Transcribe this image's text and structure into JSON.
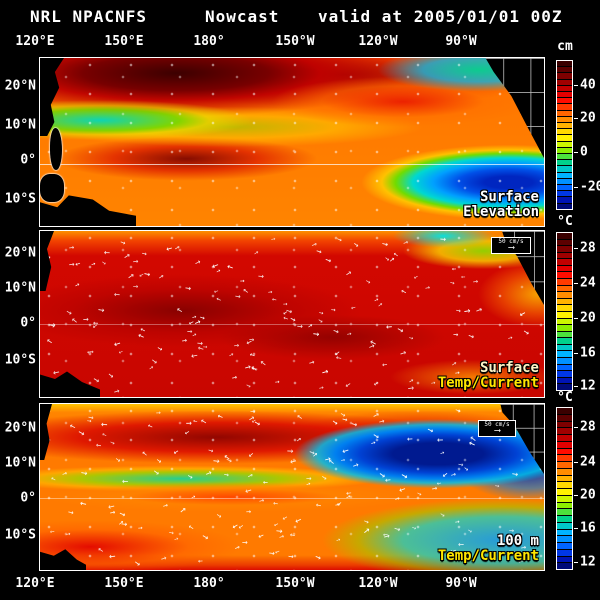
{
  "header": {
    "agency": "NRL NPACNFS",
    "product": "Nowcast",
    "valid": "valid at 2005/01/01 00Z"
  },
  "axes": {
    "lon_labels": [
      "120°E",
      "150°E",
      "180°",
      "150°W",
      "120°W",
      "90°W"
    ],
    "lat_labels": [
      "20°N",
      "10°N",
      "0°",
      "10°S"
    ]
  },
  "palette": [
    "#3a0000",
    "#5c0000",
    "#7e0000",
    "#a00000",
    "#c20000",
    "#e40000",
    "#ff0c00",
    "#ff3a00",
    "#ff6600",
    "#ff8c00",
    "#ffb200",
    "#ffd800",
    "#fff200",
    "#ccf600",
    "#8cee00",
    "#4ce23c",
    "#00d28c",
    "#00c8c8",
    "#00b4ff",
    "#0091ff",
    "#0064ff",
    "#0037e6",
    "#0014b4",
    "#000a78"
  ],
  "colorbars": [
    {
      "unit": "cm",
      "ticks": [
        "40",
        "20",
        "0",
        "-20"
      ],
      "tick_pos": [
        0.167,
        0.387,
        0.613,
        0.847
      ]
    },
    {
      "unit": "°C",
      "ticks": [
        "28",
        "24",
        "20",
        "16",
        "12"
      ],
      "tick_pos": [
        0.1,
        0.32,
        0.54,
        0.76,
        0.97
      ]
    },
    {
      "unit": "°C",
      "ticks": [
        "28",
        "24",
        "20",
        "16",
        "12"
      ],
      "tick_pos": [
        0.123,
        0.337,
        0.54,
        0.742,
        0.95
      ]
    }
  ],
  "panels": [
    {
      "label_lines": [
        "Surface",
        "Elevation"
      ]
    },
    {
      "label_lines": [
        "Surface",
        "Temp/Current"
      ],
      "ref_label": "50 cm/s"
    },
    {
      "label_lines": [
        "100 m",
        "Temp/Current"
      ],
      "ref_label": "50 cm/s"
    }
  ]
}
